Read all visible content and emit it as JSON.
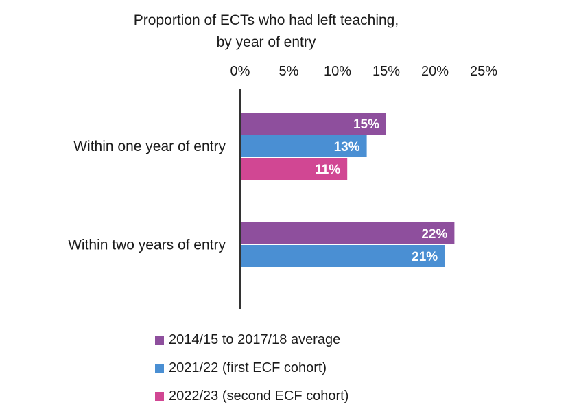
{
  "chart_data": {
    "type": "bar",
    "orientation": "horizontal",
    "title_lines": [
      "Proportion of ECTs who had left teaching,",
      "by year of entry"
    ],
    "xlim": [
      0,
      25
    ],
    "x_ticks": [
      "0%",
      "5%",
      "10%",
      "15%",
      "20%",
      "25%"
    ],
    "x_tick_values": [
      0,
      5,
      10,
      15,
      20,
      25
    ],
    "categories": [
      "Within one year of entry",
      "Within two years of entry"
    ],
    "series": [
      {
        "name": "2014/15 to 2017/18 average",
        "color": "#8e4f9d",
        "values": [
          15,
          22
        ],
        "labels": [
          "15%",
          "22%"
        ]
      },
      {
        "name": "2021/22 (first ECF cohort)",
        "color": "#4a8fd3",
        "values": [
          13,
          21
        ],
        "labels": [
          "13%",
          "21%"
        ]
      },
      {
        "name": "2022/23 (second ECF cohort)",
        "color": "#d14793",
        "values": [
          11,
          null
        ],
        "labels": [
          "11%",
          null
        ]
      }
    ],
    "legend_position": "bottom",
    "grid": false
  }
}
